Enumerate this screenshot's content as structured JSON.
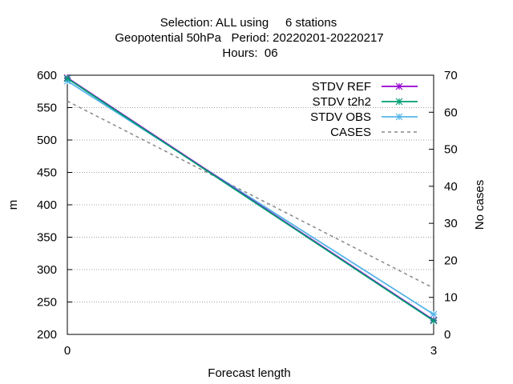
{
  "chart_data": {
    "type": "line",
    "title": [
      "Selection: ALL using     6 stations",
      "Geopotential 50hPa   Period: 20220201-20220217",
      "Hours:  06"
    ],
    "xlabel": "Forecast length",
    "ylabel": "m",
    "y2label": "No cases",
    "x": [
      0,
      3
    ],
    "x_ticks": [
      "0",
      "3"
    ],
    "ylim": [
      200,
      600
    ],
    "y_ticks": [
      "200",
      "250",
      "300",
      "350",
      "400",
      "450",
      "500",
      "550",
      "600"
    ],
    "y2lim": [
      0,
      70
    ],
    "y2_ticks": [
      "0",
      "10",
      "20",
      "30",
      "40",
      "50",
      "60",
      "70"
    ],
    "grid": true,
    "legend_position": "top-right",
    "series": [
      {
        "name": "STDV REF",
        "axis": "y",
        "values": [
          596,
          222
        ],
        "color": "#9400d3",
        "style": "solid",
        "marker": "star"
      },
      {
        "name": "STDV t2h2",
        "axis": "y",
        "values": [
          595,
          221
        ],
        "color": "#009e73",
        "style": "solid",
        "marker": "star"
      },
      {
        "name": "STDV OBS",
        "axis": "y",
        "values": [
          591,
          231
        ],
        "color": "#56b4e9",
        "style": "solid",
        "marker": "star"
      },
      {
        "name": "CASES",
        "axis": "y2",
        "values": [
          63,
          12.5
        ],
        "color": "#888888",
        "style": "dashed",
        "marker": "none"
      }
    ]
  }
}
